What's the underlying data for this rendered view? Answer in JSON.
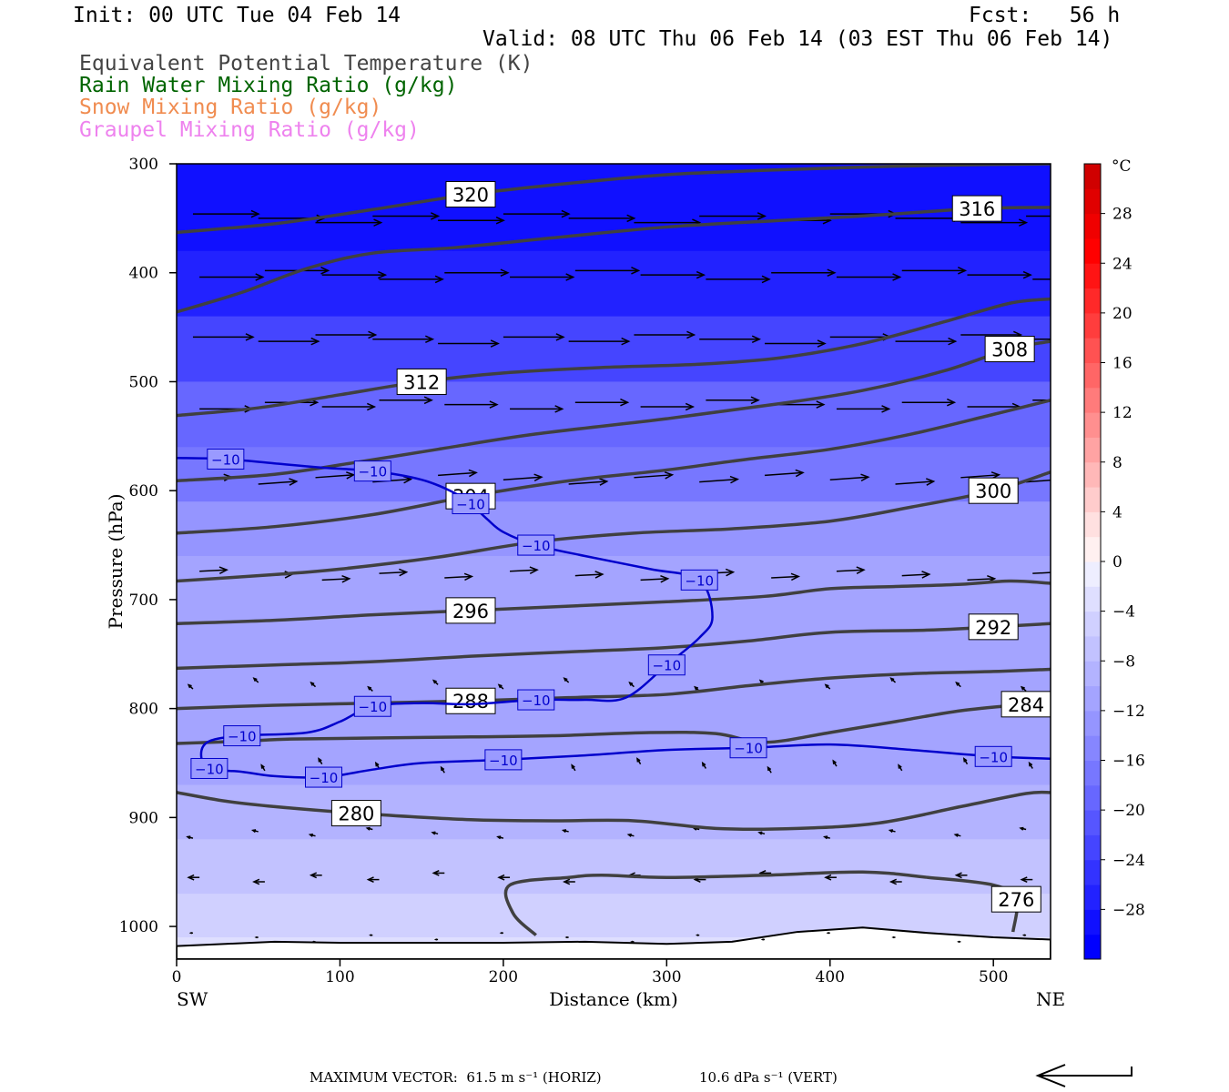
{
  "header": {
    "init": "Init: 00 UTC Tue 04 Feb 14",
    "fcst": "Fcst:   56 h",
    "valid": "Valid: 08 UTC Thu 06 Feb 14 (03 EST Thu 06 Feb 14)",
    "fields": [
      {
        "text": "Equivalent Potential Temperature (K)",
        "color": "#444444"
      },
      {
        "text": "Rain Water Mixing Ratio (g/kg)",
        "color": "#006400"
      },
      {
        "text": "Snow Mixing Ratio (g/kg)",
        "color": "#f08c50"
      },
      {
        "text": "Graupel Mixing Ratio (g/kg)",
        "color": "#ee82ee"
      }
    ]
  },
  "chart_data": {
    "type": "contour cross-section",
    "xlabel": "Distance (km)",
    "ylabel": "Pressure (hPa)",
    "xlim": [
      0,
      535
    ],
    "ylim": [
      1030,
      300
    ],
    "y_scale": "linear (pressure decreasing upward)",
    "x_ticks": [
      "0",
      "100",
      "200",
      "300",
      "400",
      "500"
    ],
    "y_ticks": [
      "300",
      "400",
      "500",
      "600",
      "700",
      "800",
      "900",
      "1000"
    ],
    "x_end_labels": {
      "left": "SW",
      "right": "NE"
    },
    "colorbar": {
      "unit": "°C",
      "labels": [
        "28",
        "24",
        "20",
        "16",
        "12",
        "8",
        "4",
        "0",
        "−4",
        "−8",
        "−12",
        "−16",
        "−20",
        "−24",
        "−28"
      ],
      "levels": [
        -32,
        -30,
        -28,
        -26,
        -24,
        -22,
        -20,
        -18,
        -16,
        -14,
        -12,
        -10,
        -8,
        -6,
        -4,
        -2,
        0,
        2,
        4,
        6,
        8,
        10,
        12,
        14,
        16,
        18,
        20,
        22,
        24,
        26,
        28,
        30,
        32
      ],
      "colors": [
        "#0000ff",
        "#1010ff",
        "#2222ff",
        "#3333ff",
        "#4545ff",
        "#5656ff",
        "#6767ff",
        "#7777ff",
        "#8686ff",
        "#9595ff",
        "#a4a4ff",
        "#b3b3ff",
        "#c2c2ff",
        "#d0d0ff",
        "#dfdfff",
        "#eeeeff",
        "#fff0f0",
        "#ffe0e0",
        "#ffcccc",
        "#ffb8b8",
        "#ffa3a3",
        "#ff8f8f",
        "#ff7b7b",
        "#ff6666",
        "#ff5252",
        "#ff3d3d",
        "#ff2929",
        "#ff1414",
        "#ff0000",
        "#f00000",
        "#e00000",
        "#d00000"
      ]
    },
    "theta_e_contours": [
      {
        "value": 320,
        "label": "320",
        "points": [
          [
            0,
            363
          ],
          [
            60,
            355
          ],
          [
            120,
            342
          ],
          [
            180,
            328
          ],
          [
            240,
            318
          ],
          [
            300,
            310
          ],
          [
            360,
            306
          ],
          [
            420,
            303
          ],
          [
            480,
            301
          ],
          [
            535,
            300
          ]
        ]
      },
      {
        "value": 316,
        "label": "316",
        "points": [
          [
            0,
            436
          ],
          [
            40,
            418
          ],
          [
            80,
            396
          ],
          [
            120,
            382
          ],
          [
            170,
            377
          ],
          [
            230,
            368
          ],
          [
            300,
            358
          ],
          [
            370,
            352
          ],
          [
            430,
            347
          ],
          [
            490,
            341
          ],
          [
            535,
            340
          ]
        ]
      },
      {
        "value": 312,
        "label": "312",
        "points": [
          [
            0,
            531
          ],
          [
            50,
            524
          ],
          [
            100,
            512
          ],
          [
            150,
            500
          ],
          [
            200,
            492
          ],
          [
            260,
            487
          ],
          [
            320,
            484
          ],
          [
            370,
            478
          ],
          [
            420,
            465
          ],
          [
            470,
            445
          ],
          [
            510,
            428
          ],
          [
            535,
            424
          ]
        ]
      },
      {
        "value": 308,
        "label": "308",
        "points": [
          [
            0,
            591
          ],
          [
            60,
            585
          ],
          [
            110,
            574
          ],
          [
            160,
            562
          ],
          [
            220,
            548
          ],
          [
            300,
            534
          ],
          [
            370,
            520
          ],
          [
            420,
            508
          ],
          [
            470,
            490
          ],
          [
            510,
            470
          ],
          [
            535,
            463
          ]
        ]
      },
      {
        "value": 304,
        "label": "304",
        "points": [
          [
            0,
            639
          ],
          [
            60,
            633
          ],
          [
            120,
            622
          ],
          [
            180,
            605
          ],
          [
            240,
            591
          ],
          [
            300,
            581
          ],
          [
            350,
            571
          ],
          [
            400,
            562
          ],
          [
            450,
            548
          ],
          [
            500,
            530
          ],
          [
            535,
            517
          ]
        ]
      },
      {
        "value": 300,
        "label": "300",
        "points": [
          [
            0,
            683
          ],
          [
            60,
            677
          ],
          [
            100,
            672
          ],
          [
            160,
            661
          ],
          [
            220,
            647
          ],
          [
            280,
            639
          ],
          [
            340,
            635
          ],
          [
            400,
            628
          ],
          [
            450,
            615
          ],
          [
            500,
            600
          ],
          [
            535,
            583
          ]
        ]
      },
      {
        "value": 296,
        "label": "296",
        "points": [
          [
            0,
            722
          ],
          [
            60,
            719
          ],
          [
            120,
            714
          ],
          [
            180,
            710
          ],
          [
            240,
            706
          ],
          [
            300,
            702
          ],
          [
            360,
            697
          ],
          [
            400,
            690
          ],
          [
            440,
            688
          ],
          [
            480,
            686
          ],
          [
            510,
            683
          ],
          [
            535,
            685
          ]
        ]
      },
      {
        "value": 292,
        "label": "292",
        "points": [
          [
            0,
            763
          ],
          [
            60,
            760
          ],
          [
            120,
            757
          ],
          [
            180,
            752
          ],
          [
            240,
            748
          ],
          [
            300,
            744
          ],
          [
            350,
            738
          ],
          [
            400,
            730
          ],
          [
            460,
            728
          ],
          [
            500,
            725
          ],
          [
            535,
            722
          ]
        ]
      },
      {
        "value": 288,
        "label": "288",
        "points": [
          [
            0,
            800
          ],
          [
            60,
            797
          ],
          [
            120,
            795
          ],
          [
            180,
            793
          ],
          [
            240,
            790
          ],
          [
            300,
            787
          ],
          [
            350,
            779
          ],
          [
            400,
            772
          ],
          [
            450,
            768
          ],
          [
            500,
            766
          ],
          [
            535,
            764
          ]
        ]
      },
      {
        "value": 284,
        "label": "284",
        "points": [
          [
            0,
            832
          ],
          [
            40,
            830
          ],
          [
            70,
            828
          ],
          [
            120,
            827
          ],
          [
            180,
            826
          ],
          [
            230,
            825
          ],
          [
            290,
            822
          ],
          [
            330,
            823
          ],
          [
            360,
            831
          ],
          [
            400,
            822
          ],
          [
            440,
            812
          ],
          [
            480,
            802
          ],
          [
            520,
            796
          ],
          [
            535,
            794
          ]
        ]
      },
      {
        "value": 280,
        "label": "280",
        "points": [
          [
            0,
            877
          ],
          [
            30,
            885
          ],
          [
            60,
            890
          ],
          [
            110,
            896
          ],
          [
            180,
            902
          ],
          [
            230,
            903
          ],
          [
            280,
            903
          ],
          [
            330,
            910
          ],
          [
            380,
            910
          ],
          [
            430,
            905
          ],
          [
            480,
            890
          ],
          [
            520,
            878
          ],
          [
            535,
            877
          ]
        ]
      },
      {
        "value": 276,
        "label": "276",
        "points": [
          [
            220,
            1008
          ],
          [
            206,
            988
          ],
          [
            204,
            962
          ],
          [
            240,
            955
          ],
          [
            260,
            953
          ],
          [
            300,
            955
          ],
          [
            360,
            953
          ],
          [
            420,
            950
          ],
          [
            460,
            955
          ],
          [
            500,
            962
          ],
          [
            514,
            975
          ],
          [
            512,
            1005
          ]
        ]
      }
    ],
    "temp_minus10_contours": [
      {
        "label": "−10",
        "points": [
          [
            0,
            570
          ],
          [
            30,
            571
          ],
          [
            60,
            575
          ],
          [
            90,
            579
          ],
          [
            120,
            582
          ],
          [
            150,
            590
          ],
          [
            170,
            602
          ],
          [
            180,
            612
          ],
          [
            190,
            626
          ],
          [
            200,
            638
          ],
          [
            220,
            650
          ],
          [
            250,
            660
          ],
          [
            290,
            672
          ],
          [
            320,
            682
          ],
          [
            328,
            716
          ],
          [
            320,
            735
          ],
          [
            300,
            760
          ],
          [
            275,
            790
          ],
          [
            250,
            792
          ],
          [
            220,
            792
          ],
          [
            180,
            796
          ],
          [
            150,
            795
          ],
          [
            120,
            798
          ],
          [
            100,
            812
          ],
          [
            80,
            822
          ],
          [
            40,
            825
          ],
          [
            20,
            830
          ],
          [
            15,
            842
          ],
          [
            20,
            855
          ],
          [
            40,
            858
          ],
          [
            60,
            862
          ],
          [
            90,
            863
          ],
          [
            120,
            856
          ],
          [
            150,
            850
          ],
          [
            200,
            847
          ],
          [
            250,
            843
          ],
          [
            300,
            838
          ],
          [
            350,
            836
          ],
          [
            400,
            833
          ],
          [
            450,
            838
          ],
          [
            500,
            844
          ],
          [
            535,
            846
          ]
        ]
      }
    ],
    "terrain_surface_hpa": [
      [
        0,
        1018
      ],
      [
        30,
        1016
      ],
      [
        60,
        1014
      ],
      [
        100,
        1015
      ],
      [
        150,
        1015
      ],
      [
        200,
        1015
      ],
      [
        250,
        1014
      ],
      [
        300,
        1016
      ],
      [
        340,
        1014
      ],
      [
        380,
        1005
      ],
      [
        420,
        1001
      ],
      [
        460,
        1006
      ],
      [
        500,
        1010
      ],
      [
        535,
        1012
      ]
    ],
    "temperature_levels_hpa": [
      [
        300,
        -30
      ],
      [
        380,
        -28
      ],
      [
        440,
        -25
      ],
      [
        500,
        -21
      ],
      [
        560,
        -18
      ],
      [
        610,
        -15
      ],
      [
        660,
        -12
      ],
      [
        720,
        -10
      ],
      [
        780,
        -11
      ],
      [
        830,
        -13
      ],
      [
        870,
        -10
      ],
      [
        920,
        -8
      ],
      [
        970,
        -6
      ],
      [
        1010,
        -4
      ],
      [
        1030,
        -3
      ]
    ],
    "wind_vectors": {
      "max_horiz_text": "MAXIMUM VECTOR:  61.5 m s⁻¹ (HORIZ)",
      "max_vert_text": "10.6 dPa s⁻¹ (VERT)",
      "rows": [
        {
          "p": 350,
          "u": 60,
          "w": 0
        },
        {
          "p": 402,
          "u": 58,
          "w": 0
        },
        {
          "p": 461,
          "u": 55,
          "w": 0
        },
        {
          "p": 521,
          "u": 48,
          "w": 0
        },
        {
          "p": 590,
          "u": 35,
          "w": 2
        },
        {
          "p": 678,
          "u": 25,
          "w": 1
        },
        {
          "p": 780,
          "u": -4,
          "w": 3
        },
        {
          "p": 855,
          "u": -3,
          "w": 4
        },
        {
          "p": 915,
          "u": -5,
          "w": 1
        },
        {
          "p": 955,
          "u": -10,
          "w": 0
        },
        {
          "p": 1010,
          "u": -2,
          "w": 0
        }
      ]
    }
  }
}
